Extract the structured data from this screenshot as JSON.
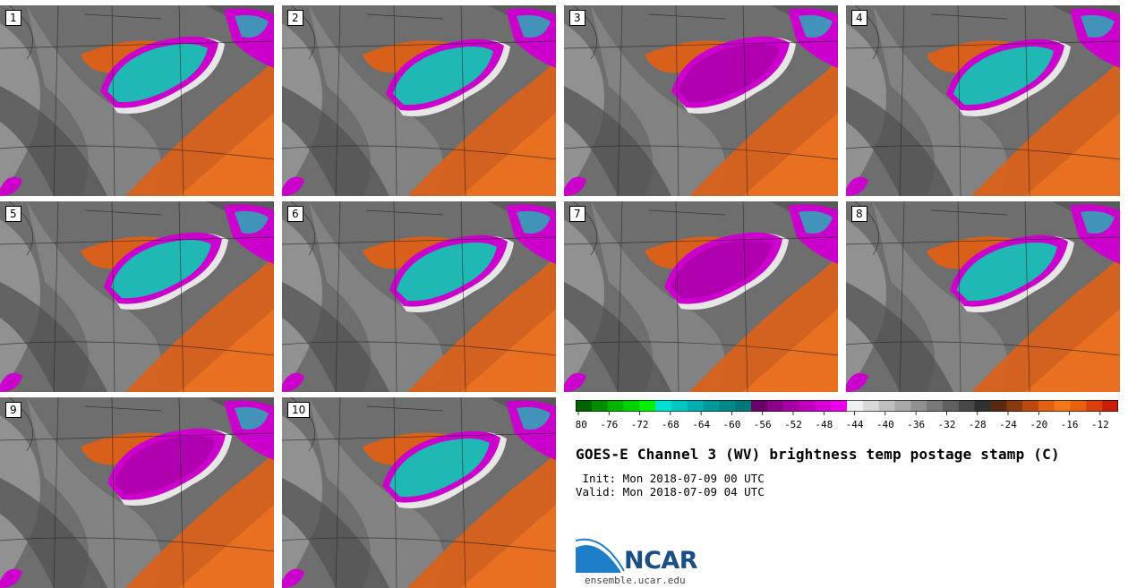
{
  "panels": [
    {
      "label": "1"
    },
    {
      "label": "2"
    },
    {
      "label": "3"
    },
    {
      "label": "4"
    },
    {
      "label": "5"
    },
    {
      "label": "6"
    },
    {
      "label": "7"
    },
    {
      "label": "8"
    },
    {
      "label": "9"
    },
    {
      "label": "10"
    }
  ],
  "title": "GOES-E Channel 3 (WV) brightness temp postage stamp (C)",
  "init": " Init: Mon 2018-07-09 00 UTC",
  "valid": "Valid: Mon 2018-07-09 04 UTC",
  "logo": {
    "text": "NCAR",
    "url": "ensemble.ucar.edu"
  },
  "colorbar": {
    "ticks": [
      "-80",
      "-76",
      "-72",
      "-68",
      "-64",
      "-60",
      "-56",
      "-52",
      "-48",
      "-44",
      "-40",
      "-36",
      "-32",
      "-28",
      "-24",
      "-20",
      "-16",
      "-12"
    ],
    "range": [
      -80,
      -10
    ],
    "colors": [
      "#006400",
      "#008c00",
      "#00b400",
      "#00d200",
      "#00f000",
      "#00e0d0",
      "#00c8c0",
      "#00b0b0",
      "#009898",
      "#008888",
      "#007878",
      "#6a006a",
      "#8a008a",
      "#a400a4",
      "#be00be",
      "#d400d4",
      "#ec00ec",
      "#f0f0f0",
      "#d8d8d8",
      "#c0c0c0",
      "#a8a8a8",
      "#909090",
      "#787878",
      "#606060",
      "#484848",
      "#303030",
      "#5a2a10",
      "#8a3a10",
      "#b84a10",
      "#e06010",
      "#f07818",
      "#e86010",
      "#d84010",
      "#c82008"
    ]
  },
  "colors": {
    "cloud": "#1fb8b4",
    "cloud_edge": "#cc00cc",
    "dry": "#d8601a",
    "background": "#6e6e6e"
  }
}
